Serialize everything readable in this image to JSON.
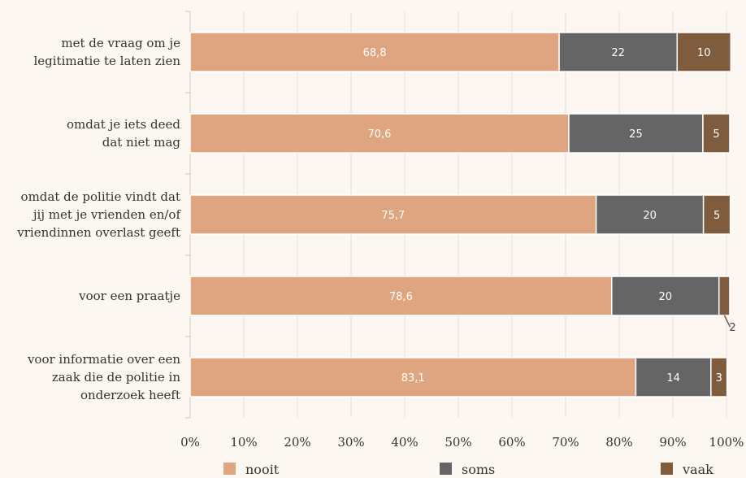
{
  "chart_data": {
    "type": "bar",
    "orientation": "horizontal",
    "stacked": true,
    "categories": [
      [
        "met de vraag om je",
        "legitimatie te laten zien"
      ],
      [
        "omdat je iets deed",
        "dat niet mag"
      ],
      [
        "omdat de politie vindt dat",
        "jij met je vrienden en/of",
        "vriendinnen overlast geeft"
      ],
      [
        "voor een praatje"
      ],
      [
        "voor informatie over een",
        "zaak die de politie in",
        "onderzoek heeft"
      ]
    ],
    "series": [
      {
        "name": "nooit",
        "color": "#dfa580",
        "values": [
          68.8,
          70.6,
          75.7,
          78.6,
          83.1
        ],
        "labels": [
          "68,8",
          "70,6",
          "75,7",
          "78,6",
          "83,1"
        ]
      },
      {
        "name": "soms",
        "color": "#656565",
        "values": [
          22,
          25,
          20,
          20,
          14
        ],
        "labels": [
          "22",
          "25",
          "20",
          "20",
          "14"
        ]
      },
      {
        "name": "vaak",
        "color": "#7f5c3e",
        "values": [
          10,
          5,
          5,
          2,
          3
        ],
        "labels": [
          "10",
          "5",
          "5",
          "2",
          "3"
        ]
      }
    ],
    "xlim": [
      0,
      100
    ],
    "xticks": [
      "0%",
      "10%",
      "20%",
      "30%",
      "40%",
      "50%",
      "60%",
      "70%",
      "80%",
      "90%",
      "100%"
    ],
    "grid": true,
    "legend_position": "bottom"
  }
}
